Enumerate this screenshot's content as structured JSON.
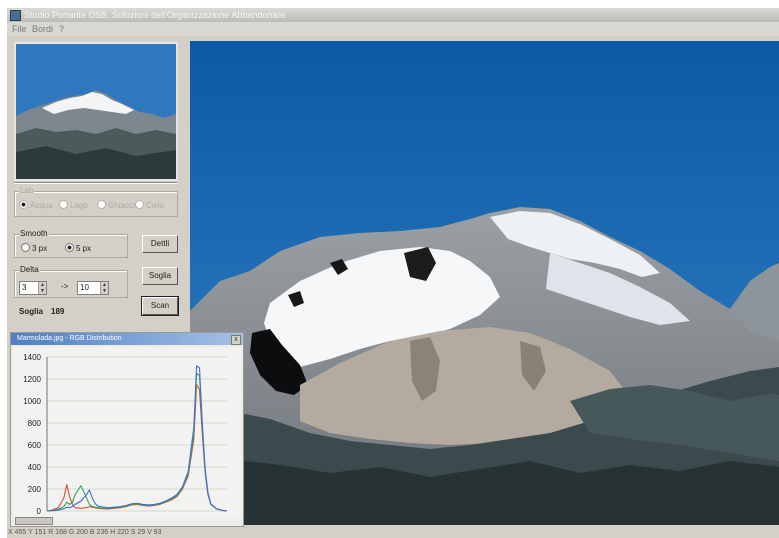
{
  "window": {
    "title": "Studio Portante DSB, Soluzioni dell'Organizzazione Abbandonare"
  },
  "menu": {
    "items": [
      "File",
      "Bordi",
      "?"
    ]
  },
  "panel": {
    "level_group": {
      "caption": "Lab",
      "options": [
        "Acqua",
        "Lago",
        "Ghiaccio",
        "Cielo"
      ],
      "selected_index": 0
    },
    "smooth_group": {
      "caption": "Smooth",
      "options": [
        "3 px",
        "5 px"
      ],
      "selected_index": 1
    },
    "delta_group": {
      "caption": "Delta",
      "from_value": "3",
      "separator": "->",
      "to_value": "10"
    },
    "buttons": {
      "detail": "Dettli",
      "threshold": "Soglia",
      "scan": "Scan"
    },
    "threshold_readout": {
      "label": "Soglia",
      "value": "189"
    }
  },
  "histogram": {
    "title": "Marmolada.jpg - RGB Distribution",
    "close_label": "x",
    "chart_data": {
      "type": "line",
      "title": "",
      "xlabel": "",
      "ylabel": "",
      "ylim": [
        0,
        1400
      ],
      "yticks": [
        0,
        200,
        400,
        600,
        800,
        1000,
        1200,
        1400
      ],
      "x": [
        0,
        8,
        16,
        24,
        28,
        32,
        36,
        40,
        48,
        56,
        60,
        64,
        68,
        72,
        80,
        88,
        96,
        104,
        112,
        120,
        128,
        136,
        144,
        152,
        160,
        168,
        176,
        184,
        192,
        200,
        208,
        212,
        216,
        220,
        224,
        228,
        232,
        240,
        248,
        255
      ],
      "series": [
        {
          "color": "#e04a3a",
          "values": [
            0,
            10,
            30,
            120,
            240,
            130,
            60,
            30,
            25,
            30,
            40,
            35,
            30,
            25,
            20,
            20,
            25,
            30,
            40,
            55,
            60,
            50,
            45,
            50,
            60,
            80,
            100,
            130,
            200,
            320,
            650,
            1150,
            1100,
            700,
            350,
            150,
            60,
            20,
            5,
            0
          ]
        },
        {
          "color": "#35a455",
          "values": [
            0,
            5,
            15,
            40,
            80,
            60,
            80,
            150,
            230,
            120,
            60,
            40,
            35,
            30,
            25,
            25,
            30,
            35,
            45,
            60,
            65,
            55,
            50,
            55,
            65,
            85,
            110,
            140,
            210,
            340,
            700,
            1250,
            1230,
            760,
            370,
            160,
            60,
            20,
            5,
            0
          ]
        },
        {
          "color": "#3e6fd0",
          "values": [
            0,
            3,
            8,
            20,
            35,
            30,
            40,
            60,
            90,
            150,
            190,
            120,
            70,
            45,
            35,
            30,
            35,
            40,
            50,
            65,
            70,
            60,
            55,
            60,
            70,
            90,
            115,
            150,
            220,
            360,
            760,
            1320,
            1300,
            800,
            390,
            170,
            65,
            22,
            6,
            0
          ]
        }
      ]
    }
  },
  "status": {
    "text": "X 455 Y 151  R 168 G 200 B 236  H 220 S 29 V 93"
  },
  "icons": {
    "app": "app-icon",
    "close": "close-icon"
  }
}
